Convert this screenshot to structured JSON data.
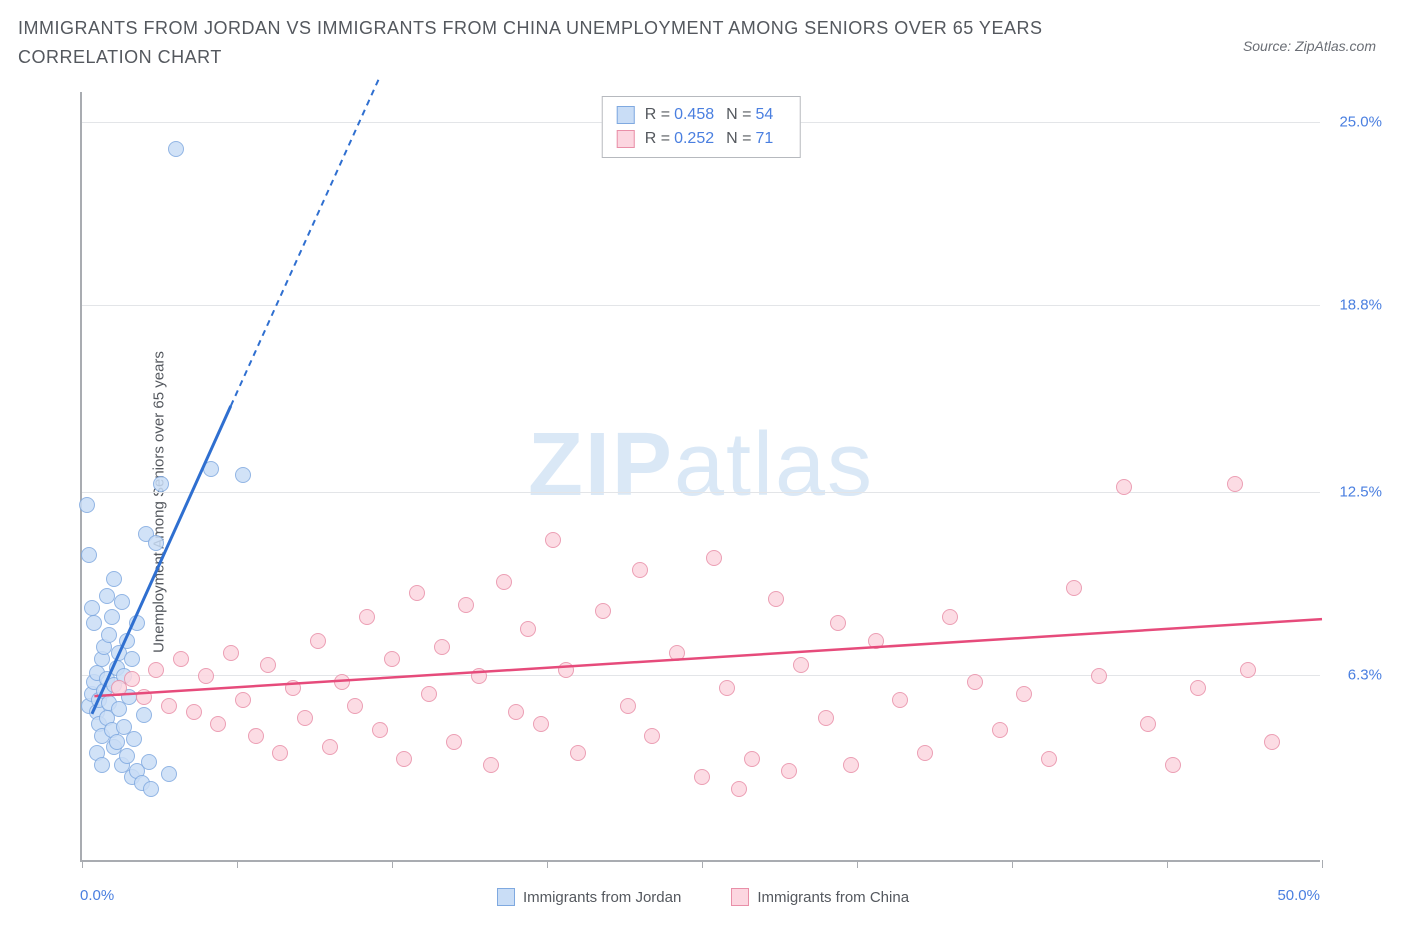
{
  "title": "IMMIGRANTS FROM JORDAN VS IMMIGRANTS FROM CHINA UNEMPLOYMENT AMONG SENIORS OVER 65 YEARS CORRELATION CHART",
  "source": "Source: ZipAtlas.com",
  "ylabel": "Unemployment Among Seniors over 65 years",
  "watermark_bold": "ZIP",
  "watermark_light": "atlas",
  "chart": {
    "type": "scatter",
    "xlim": [
      0,
      50
    ],
    "ylim": [
      0,
      26
    ],
    "xtick_positions": [
      0,
      6.25,
      12.5,
      18.75,
      25,
      31.25,
      37.5,
      43.75,
      50
    ],
    "ytick_positions": [
      6.3,
      12.5,
      18.8,
      25.0
    ],
    "ytick_labels": [
      "6.3%",
      "12.5%",
      "18.8%",
      "25.0%"
    ],
    "xlabel_min": "0.0%",
    "xlabel_max": "50.0%",
    "background_color": "#ffffff",
    "grid_color": "#e3e5e8",
    "axis_color": "#a9acb1"
  },
  "series": [
    {
      "name": "Immigrants from Jordan",
      "fill": "#c9ddf6",
      "stroke": "#7fa9e0",
      "line_color": "#2f6fd0",
      "R": "0.458",
      "N": "54",
      "trend": {
        "x1": 0.4,
        "y1": 5.0,
        "x2": 6.0,
        "y2": 15.4,
        "x3": 12.0,
        "y3": 26.5
      },
      "points": [
        [
          0.3,
          5.2
        ],
        [
          0.4,
          5.6
        ],
        [
          0.5,
          6.0
        ],
        [
          0.6,
          5.0
        ],
        [
          0.6,
          6.3
        ],
        [
          0.7,
          4.6
        ],
        [
          0.7,
          5.4
        ],
        [
          0.8,
          6.8
        ],
        [
          0.8,
          4.2
        ],
        [
          0.9,
          5.7
        ],
        [
          0.9,
          7.2
        ],
        [
          1.0,
          4.8
        ],
        [
          1.0,
          6.1
        ],
        [
          1.1,
          5.3
        ],
        [
          1.1,
          7.6
        ],
        [
          1.2,
          4.4
        ],
        [
          1.2,
          8.2
        ],
        [
          1.3,
          5.9
        ],
        [
          1.3,
          3.8
        ],
        [
          1.4,
          6.5
        ],
        [
          1.4,
          4.0
        ],
        [
          1.5,
          7.0
        ],
        [
          1.5,
          5.1
        ],
        [
          1.6,
          3.2
        ],
        [
          1.6,
          8.7
        ],
        [
          1.7,
          4.5
        ],
        [
          1.7,
          6.2
        ],
        [
          1.8,
          3.5
        ],
        [
          1.8,
          7.4
        ],
        [
          1.9,
          5.5
        ],
        [
          2.0,
          2.8
        ],
        [
          2.0,
          6.8
        ],
        [
          2.1,
          4.1
        ],
        [
          2.2,
          3.0
        ],
        [
          2.2,
          8.0
        ],
        [
          2.4,
          2.6
        ],
        [
          2.5,
          4.9
        ],
        [
          2.6,
          11.0
        ],
        [
          2.7,
          3.3
        ],
        [
          2.8,
          2.4
        ],
        [
          3.0,
          10.7
        ],
        [
          3.2,
          12.7
        ],
        [
          3.5,
          2.9
        ],
        [
          0.2,
          12.0
        ],
        [
          0.3,
          10.3
        ],
        [
          0.4,
          8.5
        ],
        [
          0.5,
          8.0
        ],
        [
          1.0,
          8.9
        ],
        [
          1.3,
          9.5
        ],
        [
          3.8,
          24.0
        ],
        [
          5.2,
          13.2
        ],
        [
          6.5,
          13.0
        ],
        [
          0.6,
          3.6
        ],
        [
          0.8,
          3.2
        ]
      ]
    },
    {
      "name": "Immigrants from China",
      "fill": "#fcd6e0",
      "stroke": "#e98fa8",
      "line_color": "#e64b7b",
      "R": "0.252",
      "N": "71",
      "trend": {
        "x1": 0.5,
        "y1": 5.6,
        "x2": 50.0,
        "y2": 8.2
      },
      "points": [
        [
          1.5,
          5.8
        ],
        [
          2.0,
          6.1
        ],
        [
          2.5,
          5.5
        ],
        [
          3.0,
          6.4
        ],
        [
          3.5,
          5.2
        ],
        [
          4.0,
          6.8
        ],
        [
          4.5,
          5.0
        ],
        [
          5.0,
          6.2
        ],
        [
          5.5,
          4.6
        ],
        [
          6.0,
          7.0
        ],
        [
          6.5,
          5.4
        ],
        [
          7.0,
          4.2
        ],
        [
          7.5,
          6.6
        ],
        [
          8.0,
          3.6
        ],
        [
          8.5,
          5.8
        ],
        [
          9.0,
          4.8
        ],
        [
          9.5,
          7.4
        ],
        [
          10.0,
          3.8
        ],
        [
          10.5,
          6.0
        ],
        [
          11.0,
          5.2
        ],
        [
          11.5,
          8.2
        ],
        [
          12.0,
          4.4
        ],
        [
          12.5,
          6.8
        ],
        [
          13.0,
          3.4
        ],
        [
          13.5,
          9.0
        ],
        [
          14.0,
          5.6
        ],
        [
          14.5,
          7.2
        ],
        [
          15.0,
          4.0
        ],
        [
          15.5,
          8.6
        ],
        [
          16.0,
          6.2
        ],
        [
          16.5,
          3.2
        ],
        [
          17.0,
          9.4
        ],
        [
          17.5,
          5.0
        ],
        [
          18.0,
          7.8
        ],
        [
          18.5,
          4.6
        ],
        [
          19.0,
          10.8
        ],
        [
          19.5,
          6.4
        ],
        [
          20.0,
          3.6
        ],
        [
          21.0,
          8.4
        ],
        [
          22.0,
          5.2
        ],
        [
          22.5,
          9.8
        ],
        [
          23.0,
          4.2
        ],
        [
          24.0,
          7.0
        ],
        [
          25.0,
          2.8
        ],
        [
          25.5,
          10.2
        ],
        [
          26.0,
          5.8
        ],
        [
          27.0,
          3.4
        ],
        [
          28.0,
          8.8
        ],
        [
          28.5,
          3.0
        ],
        [
          29.0,
          6.6
        ],
        [
          30.0,
          4.8
        ],
        [
          30.5,
          8.0
        ],
        [
          31.0,
          3.2
        ],
        [
          32.0,
          7.4
        ],
        [
          33.0,
          5.4
        ],
        [
          34.0,
          3.6
        ],
        [
          35.0,
          8.2
        ],
        [
          36.0,
          6.0
        ],
        [
          37.0,
          4.4
        ],
        [
          38.0,
          5.6
        ],
        [
          39.0,
          3.4
        ],
        [
          40.0,
          9.2
        ],
        [
          41.0,
          6.2
        ],
        [
          42.0,
          12.6
        ],
        [
          43.0,
          4.6
        ],
        [
          44.0,
          3.2
        ],
        [
          45.0,
          5.8
        ],
        [
          46.5,
          12.7
        ],
        [
          47.0,
          6.4
        ],
        [
          48.0,
          4.0
        ],
        [
          26.5,
          2.4
        ]
      ]
    }
  ]
}
